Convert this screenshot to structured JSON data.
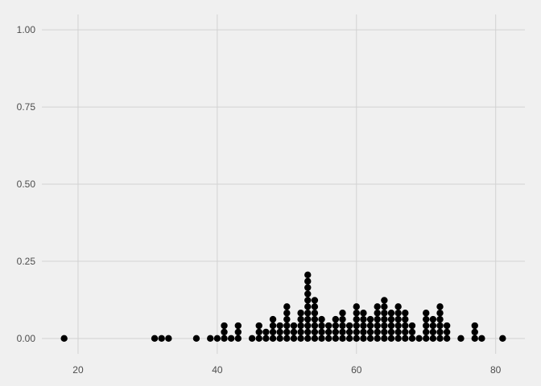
{
  "chart_data": {
    "type": "scatter",
    "subtype": "dotplot",
    "title": "",
    "xlabel": "",
    "ylabel": "",
    "xlim": [
      14.8,
      84.2
    ],
    "ylim": [
      -0.05,
      1.05
    ],
    "x_ticks": [
      20,
      40,
      60,
      80
    ],
    "x_tick_labels": [
      "20",
      "40",
      "60",
      "80"
    ],
    "y_ticks": [
      0.0,
      0.25,
      0.5,
      0.75,
      1.0
    ],
    "y_tick_labels": [
      "0.00",
      "0.25",
      "0.50",
      "0.75",
      "1.00"
    ],
    "grid": true,
    "legend": "none",
    "colors": {
      "background": "#f0f0f0",
      "grid": "#d2d2d2",
      "dot": "#000000",
      "tick_text": "#4d4d4d"
    },
    "stacks": [
      {
        "x": 18,
        "count": 1
      },
      {
        "x": 31,
        "count": 1
      },
      {
        "x": 32,
        "count": 1
      },
      {
        "x": 33,
        "count": 1
      },
      {
        "x": 37,
        "count": 1
      },
      {
        "x": 39,
        "count": 1
      },
      {
        "x": 40,
        "count": 1
      },
      {
        "x": 41,
        "count": 3
      },
      {
        "x": 42,
        "count": 1
      },
      {
        "x": 43,
        "count": 3
      },
      {
        "x": 45,
        "count": 1
      },
      {
        "x": 46,
        "count": 3
      },
      {
        "x": 47,
        "count": 2
      },
      {
        "x": 48,
        "count": 4
      },
      {
        "x": 49,
        "count": 3
      },
      {
        "x": 50,
        "count": 6
      },
      {
        "x": 51,
        "count": 3
      },
      {
        "x": 52,
        "count": 5
      },
      {
        "x": 53,
        "count": 11
      },
      {
        "x": 54,
        "count": 7
      },
      {
        "x": 55,
        "count": 4
      },
      {
        "x": 56,
        "count": 3
      },
      {
        "x": 57,
        "count": 4
      },
      {
        "x": 58,
        "count": 5
      },
      {
        "x": 59,
        "count": 3
      },
      {
        "x": 60,
        "count": 6
      },
      {
        "x": 61,
        "count": 5
      },
      {
        "x": 62,
        "count": 4
      },
      {
        "x": 63,
        "count": 6
      },
      {
        "x": 64,
        "count": 7
      },
      {
        "x": 65,
        "count": 5
      },
      {
        "x": 66,
        "count": 6
      },
      {
        "x": 67,
        "count": 5
      },
      {
        "x": 68,
        "count": 3
      },
      {
        "x": 69,
        "count": 1
      },
      {
        "x": 70,
        "count": 5
      },
      {
        "x": 71,
        "count": 4
      },
      {
        "x": 72,
        "count": 6
      },
      {
        "x": 73,
        "count": 3
      },
      {
        "x": 75,
        "count": 1
      },
      {
        "x": 77,
        "count": 3
      },
      {
        "x": 78,
        "count": 1
      },
      {
        "x": 81,
        "count": 1
      }
    ]
  }
}
